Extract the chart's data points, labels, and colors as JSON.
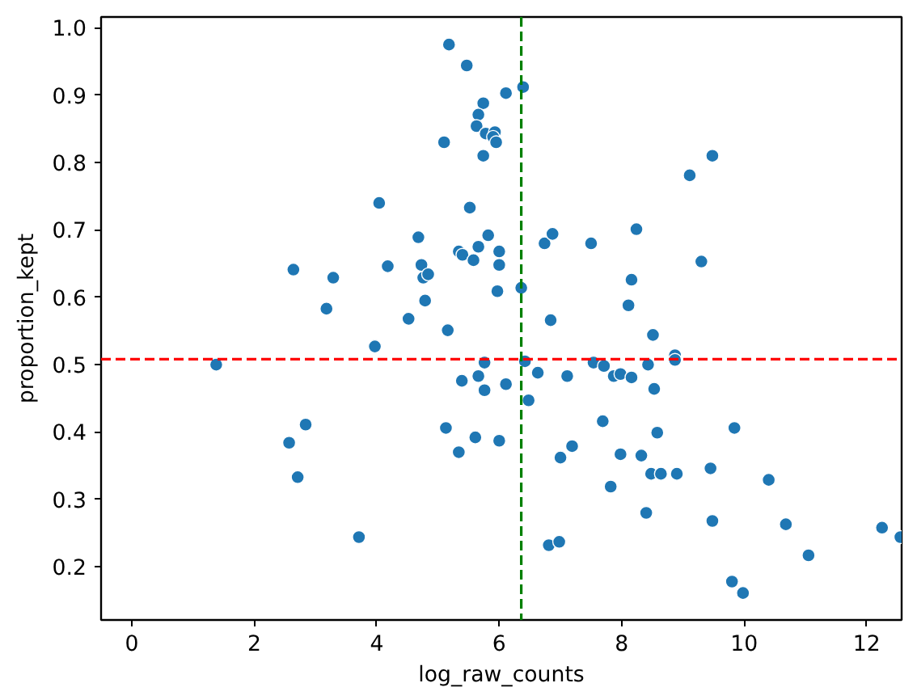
{
  "chart_data": {
    "type": "scatter",
    "xlabel": "log_raw_counts",
    "ylabel": "proportion_kept",
    "xlim": [
      -0.5,
      12.57
    ],
    "ylim": [
      0.121,
      1.016
    ],
    "xticks": [
      0,
      2,
      4,
      6,
      8,
      10,
      12
    ],
    "yticks": [
      0.2,
      0.3,
      0.4,
      0.5,
      0.6,
      0.7,
      0.8,
      0.9,
      {
        "value": 1.0,
        "label": "1.0"
      }
    ],
    "grid": false,
    "marker": "circle",
    "ref_lines": [
      {
        "axis": "y",
        "value": 0.508,
        "color": "#ff0000",
        "line_style": "dashed"
      },
      {
        "axis": "x",
        "value": 6.36,
        "color": "#008000",
        "line_style": "dashed"
      }
    ],
    "series": [
      {
        "color": "#1f77b4",
        "x": [
          5.18,
          5.47,
          5.74,
          5.66,
          5.63,
          5.78,
          5.93,
          5.9,
          5.95,
          5.1,
          5.74,
          6.11,
          6.39,
          4.04,
          5.52,
          4.68,
          5.82,
          5.66,
          5.34,
          5.4,
          5.58,
          6.0,
          6.0,
          5.97,
          2.64,
          3.29,
          4.18,
          4.73,
          4.76,
          4.84,
          3.18,
          4.79,
          4.52,
          5.16,
          3.97,
          6.36,
          6.84,
          6.74,
          6.87,
          7.5,
          8.24,
          8.16,
          8.11,
          8.51,
          9.3,
          9.11,
          9.48,
          8.87,
          1.38,
          2.57,
          2.84,
          2.71,
          3.71,
          5.76,
          5.66,
          5.39,
          5.76,
          6.11,
          5.13,
          5.61,
          5.34,
          6.0,
          6.42,
          6.63,
          6.48,
          7.11,
          7.54,
          7.71,
          7.87,
          7.98,
          8.16,
          8.43,
          8.53,
          8.87,
          7.69,
          8.58,
          9.84,
          7.19,
          7.0,
          7.98,
          8.32,
          8.48,
          8.64,
          8.9,
          9.45,
          10.4,
          7.82,
          8.4,
          9.48,
          10.68,
          12.25,
          12.55,
          6.81,
          6.98,
          11.05,
          9.8,
          9.98
        ],
        "values": [
          0.975,
          0.944,
          0.888,
          0.871,
          0.854,
          0.843,
          0.845,
          0.838,
          0.83,
          0.83,
          0.81,
          0.903,
          0.912,
          0.74,
          0.733,
          0.689,
          0.692,
          0.675,
          0.668,
          0.663,
          0.655,
          0.668,
          0.648,
          0.609,
          0.641,
          0.629,
          0.646,
          0.648,
          0.629,
          0.634,
          0.583,
          0.595,
          0.568,
          0.551,
          0.527,
          0.614,
          0.566,
          0.68,
          0.694,
          0.68,
          0.701,
          0.626,
          0.588,
          0.544,
          0.653,
          0.781,
          0.81,
          0.514,
          0.5,
          0.384,
          0.411,
          0.333,
          0.244,
          0.503,
          0.483,
          0.476,
          0.462,
          0.471,
          0.406,
          0.392,
          0.37,
          0.387,
          0.505,
          0.488,
          0.447,
          0.483,
          0.503,
          0.498,
          0.483,
          0.486,
          0.481,
          0.5,
          0.464,
          0.507,
          0.416,
          0.399,
          0.406,
          0.379,
          0.362,
          0.367,
          0.365,
          0.338,
          0.338,
          0.338,
          0.346,
          0.329,
          0.319,
          0.28,
          0.268,
          0.263,
          0.258,
          0.244,
          0.232,
          0.237,
          0.217,
          0.178,
          0.161
        ]
      }
    ]
  }
}
